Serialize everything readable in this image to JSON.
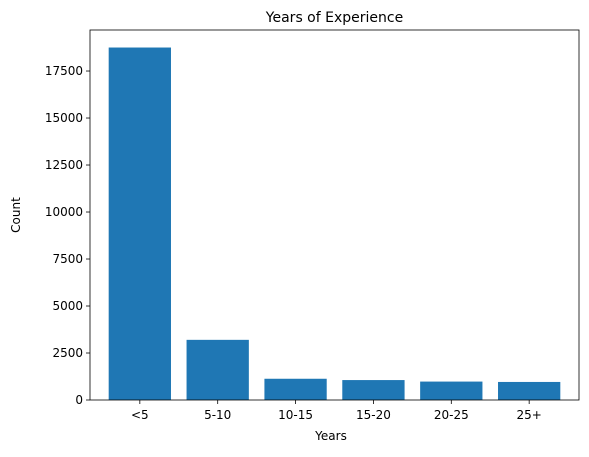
{
  "chart_data": {
    "type": "bar",
    "title": "Years of Experience",
    "xlabel": "Years",
    "ylabel": "Count",
    "categories": [
      "<5",
      "5-10",
      "10-15",
      "15-20",
      "20-25",
      "25+"
    ],
    "values": [
      18750,
      3200,
      1130,
      1060,
      980,
      960
    ],
    "ylim": [
      0,
      19682
    ],
    "yticks": [
      0,
      2500,
      5000,
      7500,
      10000,
      12500,
      15000,
      17500
    ],
    "ytick_labels": [
      "0",
      "2500",
      "5000",
      "7500",
      "10000",
      "12500",
      "15000",
      "17500"
    ],
    "grid": false,
    "legend": "none",
    "bar_color": "#1f77b4"
  }
}
